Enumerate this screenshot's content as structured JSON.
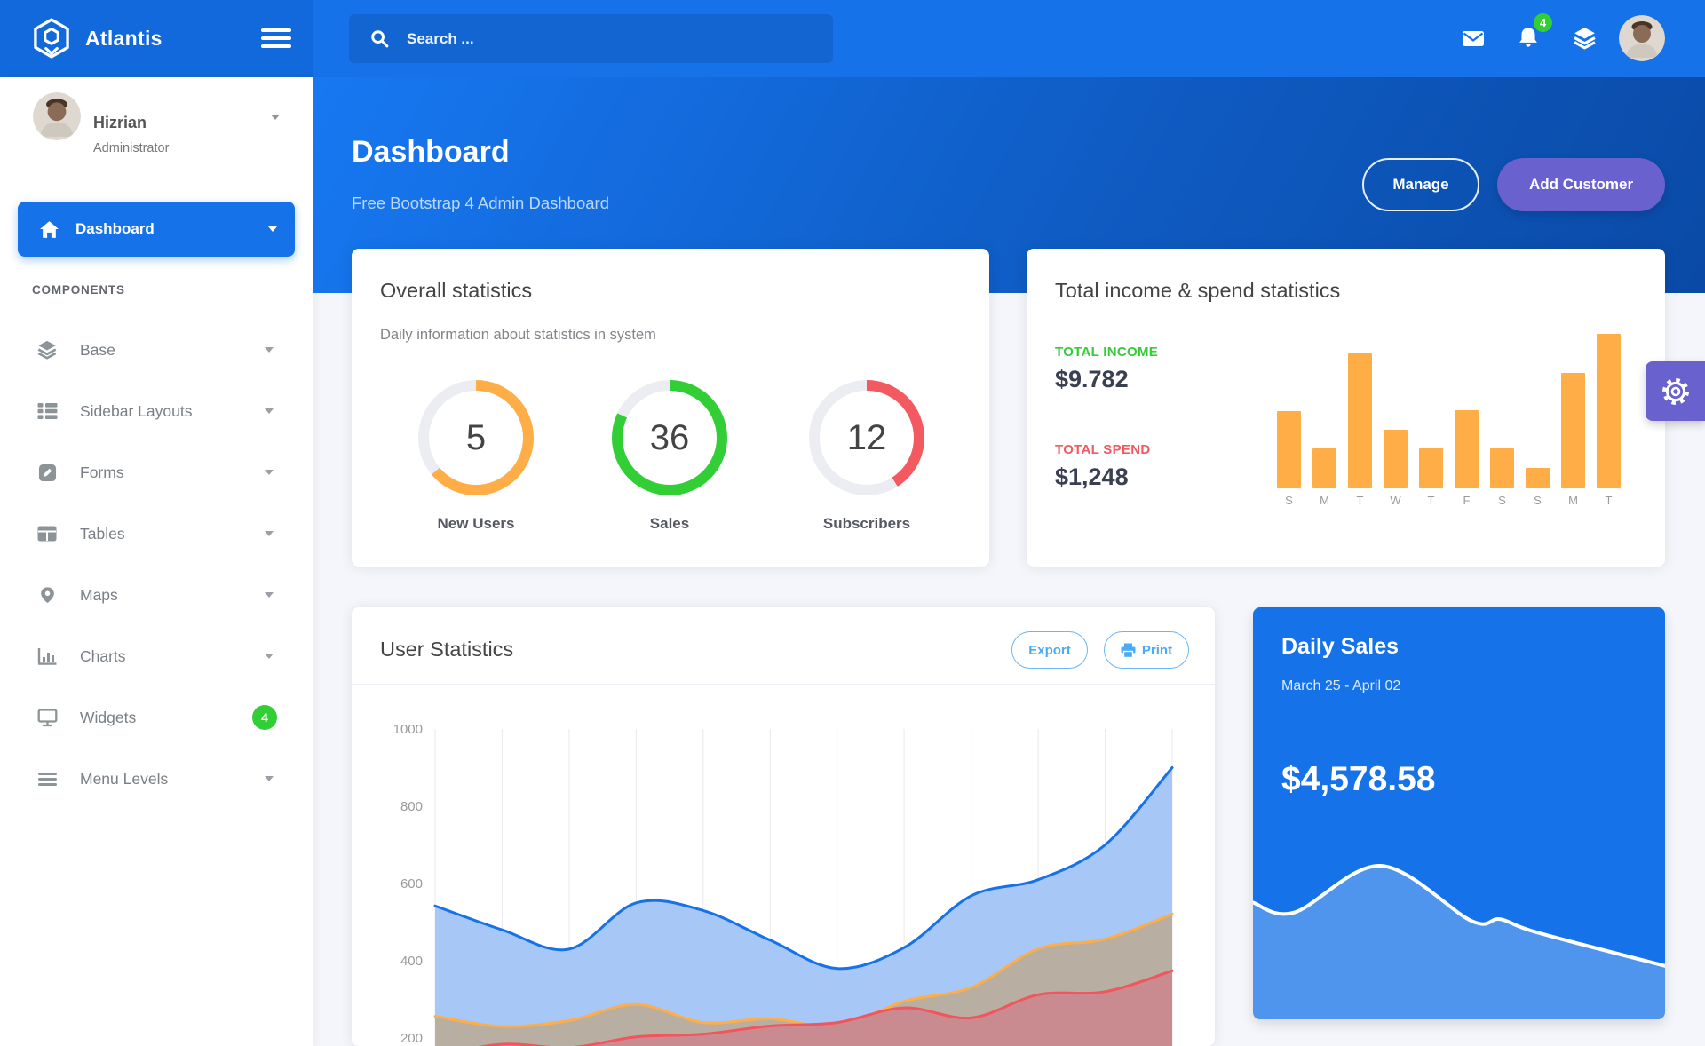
{
  "navbar": {
    "brand": "Atlantis",
    "search_placeholder": "Search ...",
    "notification_count": "4"
  },
  "sidebar": {
    "user": {
      "name": "Hizrian",
      "role": "Administrator"
    },
    "dashboard_label": "Dashboard",
    "section_label": "COMPONENTS",
    "items": [
      {
        "label": "Base",
        "icon": "layers-icon"
      },
      {
        "label": "Sidebar Layouts",
        "icon": "list-icon"
      },
      {
        "label": "Forms",
        "icon": "pen-icon"
      },
      {
        "label": "Tables",
        "icon": "table-icon"
      },
      {
        "label": "Maps",
        "icon": "map-pin-icon"
      },
      {
        "label": "Charts",
        "icon": "bar-chart-icon"
      },
      {
        "label": "Widgets",
        "icon": "desktop-icon",
        "badge": "4"
      },
      {
        "label": "Menu Levels",
        "icon": "bars-icon"
      }
    ]
  },
  "header": {
    "title": "Dashboard",
    "subtitle": "Free Bootstrap 4 Admin Dashboard",
    "manage_label": "Manage",
    "add_customer_label": "Add Customer"
  },
  "overall": {
    "title": "Overall statistics",
    "subtitle": "Daily information about statistics in system",
    "metrics": [
      {
        "value": "5",
        "label": "New Users",
        "color": "#FFAD46",
        "percent": 64
      },
      {
        "value": "36",
        "label": "Sales",
        "color": "#31CE36",
        "percent": 82
      },
      {
        "value": "12",
        "label": "Subscribers",
        "color": "#F25961",
        "percent": 41
      }
    ]
  },
  "income": {
    "title": "Total income & spend statistics",
    "income_label": "TOTAL INCOME",
    "income_value": "$9.782",
    "spend_label": "TOTAL SPEND",
    "spend_value": "$1,248"
  },
  "user_stats": {
    "title": "User Statistics",
    "export_label": "Export",
    "print_label": "Print"
  },
  "daily_sales": {
    "title": "Daily Sales",
    "range": "March 25 - April 02",
    "amount": "$4,578.58"
  },
  "chart_data": [
    {
      "id": "income_spend_bars",
      "type": "bar",
      "categories": [
        "S",
        "M",
        "T",
        "W",
        "T",
        "F",
        "S",
        "S",
        "M",
        "T"
      ],
      "values": [
        87,
        45,
        152,
        66,
        45,
        88,
        45,
        23,
        130,
        174
      ],
      "unit": "relative (pixel-estimated, no axis shown)",
      "color": "#FFAD46",
      "grid": false
    },
    {
      "id": "user_statistics_area",
      "type": "area",
      "x_count": 12,
      "x_labels_visible": false,
      "ylim": [
        200,
        1000
      ],
      "yticks": [
        1000,
        800,
        600,
        400,
        200
      ],
      "grid": "vertical-only",
      "series": [
        {
          "name": "series-blue",
          "line_color": "#1572E8",
          "fill_color": "#A7C8F6",
          "values": [
            542,
            480,
            430,
            550,
            530,
            453,
            380,
            434,
            568,
            610,
            700,
            900
          ]
        },
        {
          "name": "series-orange",
          "line_color": "#FFAD46",
          "fill_color": "#B8AFA2",
          "values": [
            256,
            230,
            245,
            287,
            240,
            250,
            230,
            295,
            331,
            431,
            456,
            521
          ]
        },
        {
          "name": "series-red",
          "line_color": "#F3545D",
          "fill_color": "#C98B8F",
          "values": [
            154,
            184,
            175,
            203,
            210,
            231,
            240,
            278,
            252,
            312,
            320,
            374
          ]
        }
      ]
    },
    {
      "id": "daily_sales_spark",
      "type": "area",
      "points_fraction_xy": [
        [
          0,
          0.3
        ],
        [
          0.1,
          0.36
        ],
        [
          0.31,
          0.08
        ],
        [
          0.53,
          0.41
        ],
        [
          0.6,
          0.4
        ],
        [
          0.69,
          0.48
        ],
        [
          1,
          0.68
        ]
      ],
      "line_color": "#FFFFFF",
      "fill_color": "rgba(255,255,255,0.25)"
    }
  ],
  "colors": {
    "primary": "#1572E8",
    "navbar_left": "#1269DB",
    "purple": "#6861CE",
    "success": "#31CE36",
    "danger": "#F25961",
    "warning": "#FFAD46",
    "info": "#48ABF7",
    "ring_track": "#ebedf2",
    "page_bg": "#f4f6fb"
  }
}
